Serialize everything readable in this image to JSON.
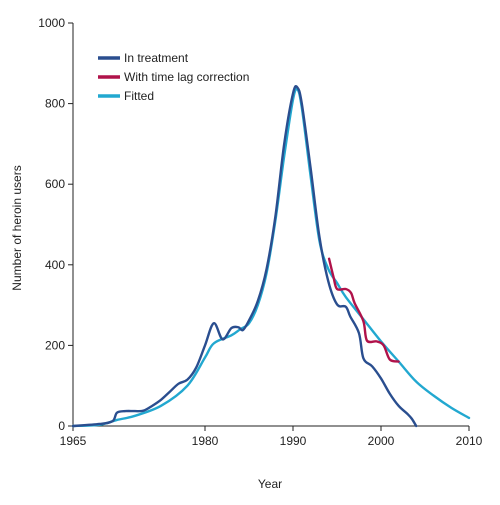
{
  "chart_data": {
    "type": "line",
    "title": "",
    "xlabel": "Year",
    "ylabel": "Number of heroin users",
    "xlim": [
      1965,
      2010
    ],
    "ylim": [
      0,
      1000
    ],
    "x_ticks": [
      1965,
      1980,
      1990,
      2000,
      2010
    ],
    "y_ticks": [
      0,
      200,
      400,
      600,
      800,
      1000
    ],
    "grid": false,
    "legend_position": "top-left",
    "series": [
      {
        "name": "In treatment",
        "color": "#2a4e8f",
        "points": [
          [
            1965,
            0
          ],
          [
            1968,
            5
          ],
          [
            1969.5,
            12
          ],
          [
            1970,
            33
          ],
          [
            1971,
            37
          ],
          [
            1972,
            37
          ],
          [
            1973,
            38
          ],
          [
            1974,
            50
          ],
          [
            1975,
            65
          ],
          [
            1976,
            85
          ],
          [
            1977,
            105
          ],
          [
            1978,
            115
          ],
          [
            1979,
            145
          ],
          [
            1980,
            200
          ],
          [
            1981,
            255
          ],
          [
            1982,
            215
          ],
          [
            1983,
            243
          ],
          [
            1983.8,
            245
          ],
          [
            1984.3,
            238
          ],
          [
            1985,
            262
          ],
          [
            1986,
            310
          ],
          [
            1987,
            390
          ],
          [
            1988,
            520
          ],
          [
            1989,
            700
          ],
          [
            1990,
            825
          ],
          [
            1990.5,
            840
          ],
          [
            1991,
            800
          ],
          [
            1992,
            640
          ],
          [
            1993,
            470
          ],
          [
            1994,
            360
          ],
          [
            1995,
            302
          ],
          [
            1996,
            296
          ],
          [
            1996.5,
            272
          ],
          [
            1997.5,
            230
          ],
          [
            1998,
            168
          ],
          [
            1999,
            148
          ],
          [
            2000,
            118
          ],
          [
            2001,
            80
          ],
          [
            2002,
            50
          ],
          [
            2003,
            30
          ],
          [
            2003.5,
            18
          ],
          [
            2004,
            0
          ]
        ]
      },
      {
        "name": "With time lag correction",
        "color": "#b0124a",
        "points": [
          [
            1994.1,
            415
          ],
          [
            1994.6,
            370
          ],
          [
            1995,
            340
          ],
          [
            1996,
            340
          ],
          [
            1996.6,
            330
          ],
          [
            1997,
            305
          ],
          [
            1998,
            260
          ],
          [
            1998.4,
            212
          ],
          [
            1999.5,
            210
          ],
          [
            2000.3,
            200
          ],
          [
            2001,
            165
          ],
          [
            2002,
            160
          ]
        ]
      },
      {
        "name": "Fitted",
        "color": "#22a8d0",
        "points": [
          [
            1965,
            0
          ],
          [
            1968,
            3
          ],
          [
            1970,
            15
          ],
          [
            1972,
            25
          ],
          [
            1975,
            50
          ],
          [
            1978,
            100
          ],
          [
            1980,
            170
          ],
          [
            1981,
            205
          ],
          [
            1983,
            225
          ],
          [
            1984,
            240
          ],
          [
            1985,
            255
          ],
          [
            1986,
            300
          ],
          [
            1987,
            380
          ],
          [
            1988,
            510
          ],
          [
            1989,
            670
          ],
          [
            1990,
            810
          ],
          [
            1990.5,
            835
          ],
          [
            1991,
            790
          ],
          [
            1992,
            620
          ],
          [
            1993,
            460
          ],
          [
            1994,
            390
          ],
          [
            1995,
            355
          ],
          [
            1996,
            320
          ],
          [
            1998,
            265
          ],
          [
            2000,
            210
          ],
          [
            2002,
            160
          ],
          [
            2004,
            110
          ],
          [
            2006,
            75
          ],
          [
            2008,
            45
          ],
          [
            2010,
            20
          ]
        ]
      }
    ]
  }
}
